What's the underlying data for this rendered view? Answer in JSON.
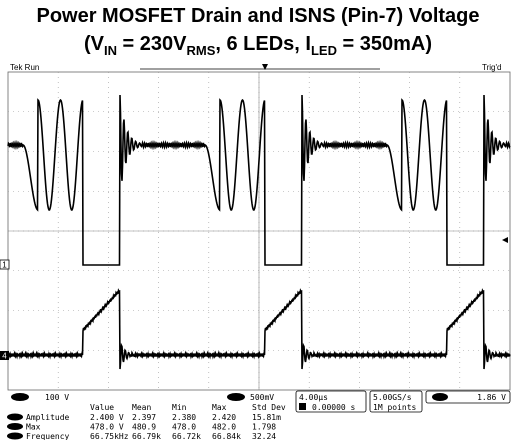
{
  "title": {
    "line1": "Power MOSFET Drain and ISNS (Pin-7) Voltage",
    "line2": [
      "(V",
      "IN",
      " = 230V",
      "RMS",
      ", 6 LEDs, I",
      "LED",
      " = 350mA)"
    ]
  },
  "scope": {
    "status": "Tek Run",
    "trigger_state": "Trig'd",
    "ch1_marker": "1",
    "ch4_marker": "4",
    "ch1_scale": "100 V",
    "ch4_scale": "500mV",
    "timebase": "4.00µs",
    "trigger_pos": "0.00000 s",
    "sample_rate": "5.00GS/s",
    "record_length": "1M points",
    "trigger_level": "1.86 V"
  },
  "measurements": {
    "headers": [
      "Value",
      "Mean",
      "Min",
      "Max",
      "Std Dev"
    ],
    "rows": [
      [
        "Amplitude",
        "2.400 V",
        "2.397",
        "2.380",
        "2.420",
        "15.81m"
      ],
      [
        "Max",
        "478.0 V",
        "480.9",
        "478.0",
        "482.0",
        "1.798"
      ],
      [
        "Frequency",
        "66.75kHz",
        "66.79k",
        "66.72k",
        "66.84k",
        "32.24"
      ]
    ]
  }
}
